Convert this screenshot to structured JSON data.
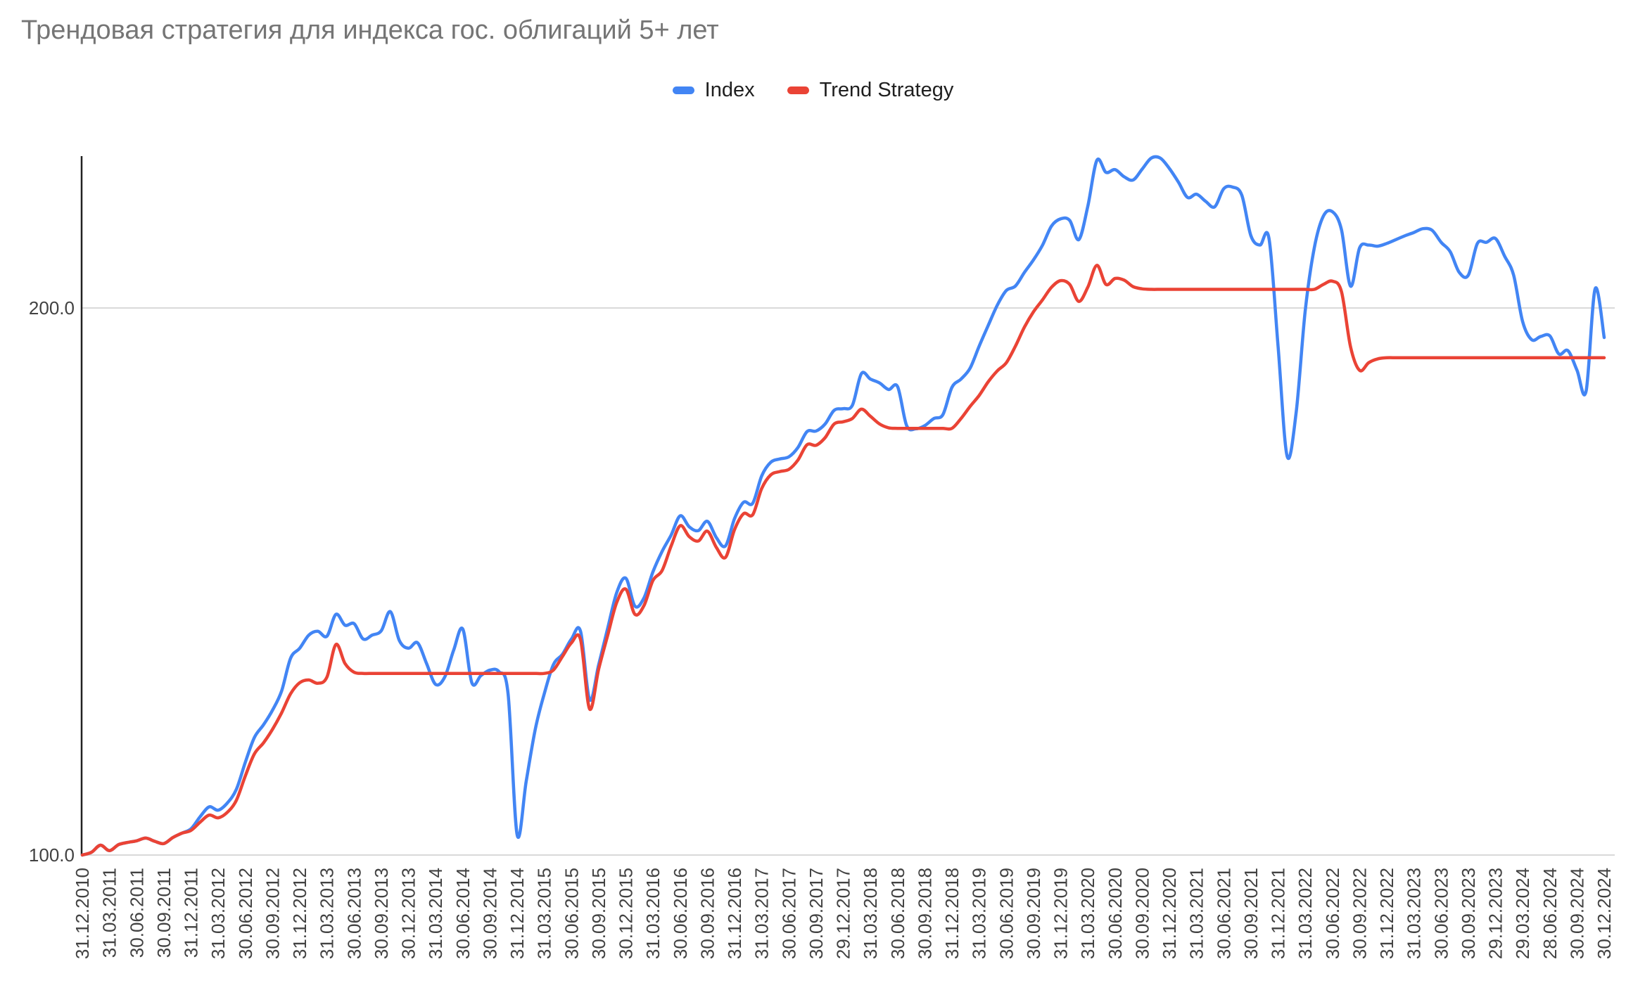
{
  "title": "Трендовая стратегия для индекса гос. облигаций 5+ лет",
  "legend": [
    {
      "label": "Index",
      "color": "#4285f4"
    },
    {
      "label": "Trend Strategy",
      "color": "#ea4335"
    }
  ],
  "chart_data": {
    "type": "line",
    "smooth": true,
    "title": "Трендовая стратегия для индекса гос. облигаций 5+ лет",
    "legend_position": "top",
    "grid_on": true,
    "x_tick_labels": [
      "31.12.2010",
      "31.03.2011",
      "30.06.2011",
      "30.09.2011",
      "31.12.2011",
      "31.03.2012",
      "30.06.2012",
      "30.09.2012",
      "31.12.2012",
      "31.03.2013",
      "30.06.2013",
      "30.09.2013",
      "30.12.2013",
      "31.03.2014",
      "30.06.2014",
      "30.09.2014",
      "31.12.2014",
      "31.03.2015",
      "30.06.2015",
      "30.09.2015",
      "30.12.2015",
      "31.03.2016",
      "30.06.2016",
      "30.09.2016",
      "31.12.2016",
      "31.03.2017",
      "30.06.2017",
      "30.09.2017",
      "29.12.2017",
      "31.03.2018",
      "30.06.2018",
      "30.09.2018",
      "31.12.2018",
      "31.03.2019",
      "30.06.2019",
      "30.09.2019",
      "31.12.2019",
      "31.03.2020",
      "30.06.2020",
      "30.09.2020",
      "31.12.2020",
      "31.03.2021",
      "30.06.2021",
      "30.09.2021",
      "31.12.2021",
      "31.03.2022",
      "30.06.2022",
      "30.09.2022",
      "31.12.2022",
      "31.03.2023",
      "30.06.2023",
      "30.09.2023",
      "29.12.2023",
      "29.03.2024",
      "28.06.2024",
      "30.09.2024",
      "30.12.2024"
    ],
    "points_per_tick": 3,
    "y_axis": {
      "min": 100.0,
      "max": 227.8,
      "ticks": [
        {
          "value": 100.0,
          "label": "100.0"
        },
        {
          "value": 200.0,
          "label": "200.0"
        }
      ],
      "grid_color": "#d9d9d9",
      "axis_line_color": "#212121",
      "label_color": "#424242"
    },
    "series": [
      {
        "name": "Index",
        "color": "#4285f4",
        "values": [
          100.0,
          100.5,
          101.8,
          100.8,
          101.9,
          102.3,
          102.6,
          103.1,
          102.5,
          102.1,
          103.2,
          104.0,
          104.8,
          107.0,
          108.8,
          108.2,
          109.5,
          112.0,
          117.0,
          121.5,
          123.8,
          126.5,
          130.0,
          136.0,
          137.8,
          140.2,
          140.9,
          140.0,
          144.0,
          142.0,
          142.3,
          139.5,
          140.2,
          141.0,
          144.5,
          139.2,
          137.8,
          138.8,
          135.0,
          131.2,
          132.5,
          137.5,
          141.3,
          131.5,
          132.8,
          133.8,
          133.5,
          129.5,
          103.7,
          113.5,
          123.0,
          129.5,
          134.8,
          136.7,
          139.5,
          140.9,
          128.4,
          134.8,
          141.5,
          148.0,
          150.6,
          145.5,
          147.0,
          151.8,
          155.5,
          158.5,
          162.0,
          160.0,
          159.3,
          161.0,
          158.0,
          156.5,
          161.5,
          164.5,
          164.3,
          169.3,
          171.8,
          172.4,
          172.8,
          174.5,
          177.4,
          177.5,
          178.8,
          181.3,
          181.6,
          182.2,
          188.0,
          187.0,
          186.3,
          185.1,
          185.6,
          178.5,
          177.9,
          178.5,
          179.8,
          180.5,
          185.5,
          187.0,
          189.0,
          193.0,
          196.8,
          200.5,
          203.2,
          204.0,
          206.5,
          208.8,
          211.5,
          215.0,
          216.3,
          216.0,
          212.5,
          218.6,
          227.0,
          224.8,
          225.3,
          224.0,
          223.4,
          225.4,
          227.4,
          227.4,
          225.5,
          223.0,
          220.2,
          220.8,
          219.5,
          218.5,
          221.8,
          222.1,
          220.6,
          213.2,
          211.5,
          212.7,
          193.0,
          172.9,
          181.0,
          199.5,
          211.0,
          216.8,
          217.6,
          214.3,
          204.0,
          211.0,
          211.5,
          211.3,
          211.8,
          212.5,
          213.2,
          213.8,
          214.5,
          214.2,
          212.0,
          210.3,
          206.5,
          206.0,
          211.8,
          212.0,
          212.7,
          209.5,
          206.0,
          197.5,
          194.2,
          194.8,
          194.9,
          191.6,
          192.2,
          188.6,
          184.8,
          203.5,
          194.6
        ]
      },
      {
        "name": "Trend Strategy",
        "color": "#ea4335",
        "values": [
          100.0,
          100.5,
          101.8,
          100.8,
          101.9,
          102.3,
          102.6,
          103.1,
          102.5,
          102.1,
          103.2,
          104.0,
          104.5,
          106.0,
          107.3,
          106.8,
          107.8,
          110.0,
          114.5,
          118.5,
          120.5,
          123.0,
          126.0,
          129.5,
          131.5,
          132.0,
          131.4,
          132.5,
          138.5,
          135.0,
          133.4,
          133.2,
          133.2,
          133.2,
          133.2,
          133.2,
          133.2,
          133.2,
          133.2,
          133.2,
          133.2,
          133.2,
          133.2,
          133.2,
          133.2,
          133.2,
          133.2,
          133.2,
          133.2,
          133.2,
          133.2,
          133.2,
          133.8,
          136.3,
          138.8,
          139.4,
          126.7,
          134.0,
          140.2,
          146.2,
          148.6,
          144.0,
          145.6,
          150.2,
          152.0,
          156.5,
          160.2,
          158.2,
          157.4,
          159.2,
          156.2,
          154.4,
          159.5,
          162.4,
          162.2,
          167.0,
          169.5,
          170.1,
          170.5,
          172.2,
          175.0,
          174.9,
          176.3,
          178.8,
          179.2,
          179.8,
          181.5,
          180.2,
          178.8,
          178.1,
          178.0,
          178.0,
          178.0,
          178.0,
          178.0,
          178.0,
          178.0,
          179.8,
          182.0,
          184.0,
          186.5,
          188.5,
          190.0,
          193.0,
          196.5,
          199.3,
          201.5,
          203.8,
          205.0,
          204.3,
          201.2,
          203.8,
          207.8,
          204.3,
          205.4,
          205.1,
          203.9,
          203.5,
          203.4,
          203.4,
          203.4,
          203.4,
          203.4,
          203.4,
          203.4,
          203.4,
          203.4,
          203.4,
          203.4,
          203.4,
          203.4,
          203.4,
          203.4,
          203.4,
          203.4,
          203.4,
          203.4,
          204.3,
          204.9,
          203.0,
          192.9,
          188.6,
          190.0,
          190.7,
          190.9,
          190.9,
          190.9,
          190.9,
          190.9,
          190.9,
          190.9,
          190.9,
          190.9,
          190.9,
          190.9,
          190.9,
          190.9,
          190.9,
          190.9,
          190.9,
          190.9,
          190.9,
          190.9,
          190.9,
          190.9,
          190.9,
          190.9,
          190.9,
          190.9
        ]
      }
    ]
  }
}
